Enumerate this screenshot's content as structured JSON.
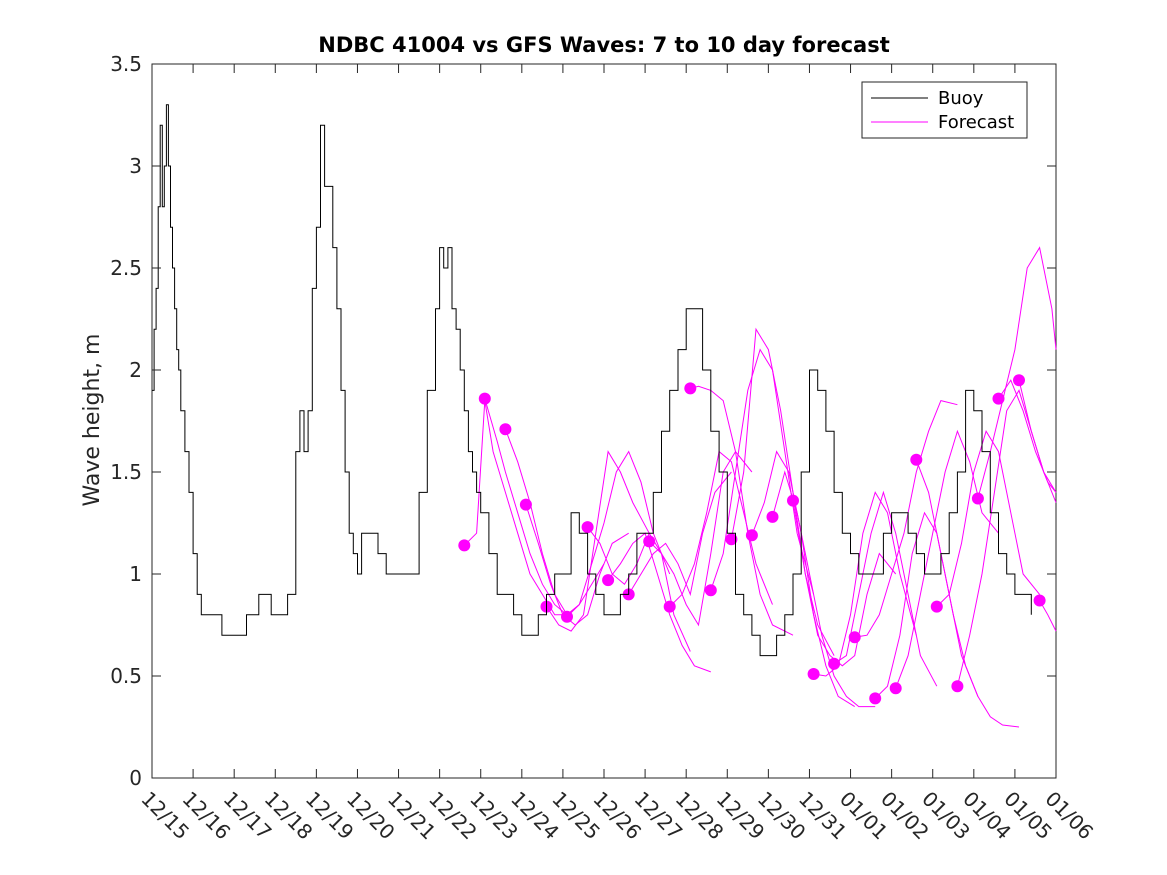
{
  "chart_data": {
    "type": "line",
    "title": "NDBC 41004 vs GFS Waves: 7 to 10 day forecast",
    "xlabel": "",
    "ylabel": "Wave height, m",
    "xlim": [
      0,
      22
    ],
    "ylim": [
      0,
      3.5
    ],
    "x_ticks": [
      0,
      1,
      2,
      3,
      4,
      5,
      6,
      7,
      8,
      9,
      10,
      11,
      12,
      13,
      14,
      15,
      16,
      17,
      18,
      19,
      20,
      21,
      22
    ],
    "x_tick_labels": [
      "12/15",
      "12/16",
      "12/17",
      "12/18",
      "12/19",
      "12/20",
      "12/21",
      "12/22",
      "12/23",
      "12/24",
      "12/25",
      "12/26",
      "12/27",
      "12/28",
      "12/29",
      "12/30",
      "12/31",
      "01/01",
      "01/02",
      "01/03",
      "01/04",
      "01/05",
      "01/06"
    ],
    "y_ticks": [
      0,
      0.5,
      1,
      1.5,
      2,
      2.5,
      3,
      3.5
    ],
    "y_tick_labels": [
      "0",
      "0.5",
      "1",
      "1.5",
      "2",
      "2.5",
      "3",
      "3.5"
    ],
    "grid": false,
    "legend": {
      "position": "top-right",
      "entries": [
        {
          "label": "Buoy",
          "color": "#000000"
        },
        {
          "label": "Forecast",
          "color": "#ff00ff"
        }
      ]
    },
    "colors": {
      "buoy": "#000000",
      "forecast": "#ff00ff",
      "axis": "#262626"
    },
    "series": [
      {
        "name": "Buoy",
        "x": [
          0,
          0.05,
          0.1,
          0.15,
          0.2,
          0.25,
          0.3,
          0.35,
          0.4,
          0.45,
          0.5,
          0.55,
          0.6,
          0.65,
          0.7,
          0.8,
          0.9,
          1.0,
          1.1,
          1.2,
          1.3,
          1.5,
          1.7,
          2.0,
          2.3,
          2.6,
          2.9,
          3.1,
          3.3,
          3.5,
          3.6,
          3.7,
          3.8,
          3.9,
          4.0,
          4.1,
          4.2,
          4.3,
          4.4,
          4.5,
          4.6,
          4.7,
          4.8,
          4.9,
          5.0,
          5.1,
          5.3,
          5.5,
          5.7,
          5.9,
          6.2,
          6.5,
          6.7,
          6.9,
          7.0,
          7.1,
          7.2,
          7.3,
          7.4,
          7.5,
          7.6,
          7.7,
          7.8,
          7.9,
          8.0,
          8.2,
          8.4,
          8.6,
          8.8,
          9.0,
          9.2,
          9.4,
          9.6,
          9.8,
          10.0,
          10.2,
          10.4,
          10.6,
          10.8,
          11.0,
          11.2,
          11.4,
          11.6,
          11.8,
          12.0,
          12.2,
          12.4,
          12.6,
          12.8,
          13.0,
          13.2,
          13.4,
          13.6,
          13.8,
          14.0,
          14.2,
          14.4,
          14.6,
          14.8,
          15.0,
          15.2,
          15.4,
          15.6,
          15.8,
          16.0,
          16.2,
          16.4,
          16.6,
          16.8,
          17.0,
          17.2,
          17.4,
          17.6,
          17.8,
          18.0,
          18.2,
          18.4,
          18.6,
          18.8,
          19.0,
          19.2,
          19.4,
          19.6,
          19.8,
          20.0,
          20.2,
          20.4,
          20.6,
          20.8,
          21.0,
          21.2,
          21.4
        ],
        "values": [
          1.9,
          2.2,
          2.4,
          2.8,
          3.2,
          2.8,
          3.0,
          3.3,
          3.0,
          2.7,
          2.5,
          2.3,
          2.1,
          2.0,
          1.8,
          1.6,
          1.4,
          1.1,
          0.9,
          0.8,
          0.8,
          0.8,
          0.7,
          0.7,
          0.8,
          0.9,
          0.8,
          0.8,
          0.9,
          1.6,
          1.8,
          1.6,
          1.8,
          2.4,
          2.7,
          3.2,
          2.9,
          2.9,
          2.6,
          2.3,
          1.9,
          1.5,
          1.2,
          1.1,
          1.0,
          1.2,
          1.2,
          1.1,
          1.0,
          1.0,
          1.0,
          1.4,
          1.9,
          2.3,
          2.6,
          2.5,
          2.6,
          2.3,
          2.2,
          2.0,
          1.8,
          1.6,
          1.5,
          1.4,
          1.3,
          1.1,
          0.9,
          0.9,
          0.8,
          0.7,
          0.7,
          0.8,
          0.9,
          1.0,
          1.0,
          1.3,
          1.2,
          1.0,
          0.9,
          0.8,
          0.8,
          0.9,
          1.0,
          1.2,
          1.2,
          1.4,
          1.7,
          1.9,
          2.1,
          2.3,
          2.3,
          2.0,
          1.7,
          1.5,
          1.2,
          0.9,
          0.8,
          0.7,
          0.6,
          0.6,
          0.7,
          0.8,
          1.0,
          1.5,
          2.0,
          1.9,
          1.7,
          1.4,
          1.2,
          1.1,
          1.0,
          1.0,
          1.0,
          1.2,
          1.3,
          1.3,
          1.2,
          1.1,
          1.0,
          1.0,
          1.1,
          1.3,
          1.5,
          1.9,
          1.8,
          1.6,
          1.3,
          1.1,
          1.0,
          0.9,
          0.9,
          0.8
        ]
      }
    ],
    "forecast_runs": [
      {
        "x": [
          7.6,
          7.9,
          8.1,
          8.3,
          8.6,
          8.9,
          9.2,
          9.5,
          9.8,
          10.1
        ],
        "values": [
          1.14,
          1.2,
          1.85,
          1.6,
          1.4,
          1.2,
          1.0,
          0.9,
          0.8,
          0.8
        ]
      },
      {
        "x": [
          8.1,
          8.4,
          8.6,
          8.9,
          9.2,
          9.5,
          9.8,
          10.1,
          10.4
        ],
        "values": [
          1.86,
          1.65,
          1.5,
          1.3,
          1.1,
          0.95,
          0.85,
          0.8,
          0.85
        ]
      },
      {
        "x": [
          8.6,
          8.9,
          9.2,
          9.5,
          9.8,
          10.1,
          10.4,
          10.7,
          11.0
        ],
        "values": [
          1.71,
          1.55,
          1.35,
          1.1,
          0.9,
          0.8,
          0.85,
          0.95,
          1.05
        ]
      },
      {
        "x": [
          9.1,
          9.4,
          9.7,
          10.0,
          10.3,
          10.6,
          10.9,
          11.2,
          11.6
        ],
        "values": [
          1.34,
          1.15,
          0.95,
          0.8,
          0.75,
          0.8,
          1.0,
          1.15,
          1.2
        ]
      },
      {
        "x": [
          9.6,
          9.9,
          10.2,
          10.5,
          10.8,
          11.1,
          11.4,
          11.7,
          12.1
        ],
        "values": [
          0.84,
          0.75,
          0.72,
          0.8,
          1.2,
          1.6,
          1.5,
          1.35,
          1.2
        ]
      },
      {
        "x": [
          10.1,
          10.4,
          10.7,
          11.0,
          11.3,
          11.6,
          11.9,
          12.2,
          12.6
        ],
        "values": [
          0.79,
          0.85,
          1.05,
          1.25,
          1.5,
          1.6,
          1.45,
          1.2,
          1.0
        ]
      },
      {
        "x": [
          10.6,
          10.9,
          11.2,
          11.5,
          11.8,
          12.1,
          12.4,
          12.7,
          13.1
        ],
        "values": [
          1.23,
          1.15,
          1.0,
          0.95,
          1.05,
          1.2,
          1.1,
          0.8,
          0.62
        ]
      },
      {
        "x": [
          11.1,
          11.4,
          11.7,
          12.0,
          12.3,
          12.6,
          12.9,
          13.2,
          13.6
        ],
        "values": [
          0.97,
          1.05,
          1.15,
          1.2,
          1.0,
          0.8,
          0.65,
          0.55,
          0.52
        ]
      },
      {
        "x": [
          11.6,
          11.9,
          12.2,
          12.5,
          12.8,
          13.1,
          13.4,
          13.7,
          14.1
        ],
        "values": [
          0.9,
          1.0,
          1.1,
          1.15,
          1.05,
          0.9,
          1.2,
          1.4,
          1.5
        ]
      },
      {
        "x": [
          12.1,
          12.4,
          12.7,
          13.0,
          13.3,
          13.6,
          13.9,
          14.2,
          14.6
        ],
        "values": [
          1.16,
          1.1,
          1.0,
          0.85,
          0.75,
          1.1,
          1.5,
          1.6,
          1.5
        ]
      },
      {
        "x": [
          12.6,
          12.9,
          13.2,
          13.5,
          13.8,
          14.1,
          14.4,
          14.7,
          15.1
        ],
        "values": [
          0.84,
          0.9,
          1.05,
          1.3,
          1.6,
          1.55,
          1.3,
          1.05,
          0.85
        ]
      },
      {
        "x": [
          13.1,
          13.3,
          13.6,
          13.9,
          14.2,
          14.5,
          14.8,
          15.1,
          15.6
        ],
        "values": [
          1.91,
          1.92,
          1.9,
          1.85,
          1.6,
          1.2,
          0.9,
          0.75,
          0.7
        ]
      },
      {
        "x": [
          13.6,
          13.9,
          14.2,
          14.5,
          14.8,
          15.1,
          15.4,
          15.7,
          16.1
        ],
        "values": [
          0.92,
          1.1,
          1.5,
          1.9,
          2.1,
          2.0,
          1.6,
          1.2,
          0.9
        ]
      },
      {
        "x": [
          14.1,
          14.4,
          14.7,
          15.0,
          15.3,
          15.6,
          15.9,
          16.2,
          16.6
        ],
        "values": [
          1.17,
          1.5,
          2.2,
          2.1,
          1.8,
          1.4,
          1.0,
          0.75,
          0.6
        ]
      },
      {
        "x": [
          14.6,
          14.9,
          15.2,
          15.5,
          15.8,
          16.1,
          16.4,
          16.7,
          17.1
        ],
        "values": [
          1.19,
          1.35,
          1.6,
          1.5,
          1.2,
          0.8,
          0.55,
          0.4,
          0.35
        ]
      },
      {
        "x": [
          15.1,
          15.4,
          15.7,
          16.0,
          16.3,
          16.6,
          16.9,
          17.2,
          17.6
        ],
        "values": [
          1.28,
          1.5,
          1.3,
          1.0,
          0.7,
          0.5,
          0.4,
          0.35,
          0.35
        ]
      },
      {
        "x": [
          15.6,
          15.9,
          16.2,
          16.5,
          16.8,
          17.1,
          17.4,
          17.7,
          18.1
        ],
        "values": [
          1.36,
          1.0,
          0.7,
          0.6,
          0.55,
          0.6,
          0.9,
          1.1,
          1.0
        ]
      },
      {
        "x": [
          16.1,
          16.4,
          16.7,
          17.0,
          17.3,
          17.6,
          17.9,
          18.2,
          18.6
        ],
        "values": [
          0.51,
          0.5,
          0.55,
          0.8,
          1.2,
          1.4,
          1.3,
          1.0,
          0.7
        ]
      },
      {
        "x": [
          16.6,
          16.9,
          17.2,
          17.5,
          17.8,
          18.1,
          18.4,
          18.7,
          19.1
        ],
        "values": [
          0.56,
          0.6,
          0.9,
          1.2,
          1.4,
          1.2,
          0.9,
          0.6,
          0.45
        ]
      },
      {
        "x": [
          17.1,
          17.4,
          17.7,
          18.0,
          18.3,
          18.6,
          18.9,
          19.2,
          19.6
        ],
        "values": [
          0.69,
          0.7,
          0.8,
          1.0,
          1.2,
          1.5,
          1.7,
          1.85,
          1.83
        ]
      },
      {
        "x": [
          17.6,
          17.9,
          18.2,
          18.5,
          18.8,
          19.1,
          19.4,
          19.7,
          20.1
        ],
        "values": [
          0.39,
          0.45,
          0.7,
          1.1,
          1.3,
          1.2,
          0.9,
          0.6,
          0.4
        ]
      },
      {
        "x": [
          18.1,
          18.4,
          18.7,
          19.0,
          19.3,
          19.6,
          19.9,
          20.2,
          20.6
        ],
        "values": [
          0.44,
          0.6,
          0.9,
          1.2,
          1.5,
          1.7,
          1.55,
          1.3,
          1.2
        ]
      },
      {
        "x": [
          18.6,
          18.9,
          19.2,
          19.5,
          19.8,
          20.1,
          20.4,
          20.7,
          21.1
        ],
        "values": [
          1.56,
          1.4,
          1.1,
          0.8,
          0.55,
          0.4,
          0.3,
          0.26,
          0.25
        ]
      },
      {
        "x": [
          19.1,
          19.4,
          19.7,
          20.0,
          20.3,
          20.6,
          20.9,
          21.2,
          21.6
        ],
        "values": [
          0.84,
          0.9,
          1.15,
          1.5,
          1.7,
          1.6,
          1.3,
          1.0,
          0.9
        ]
      },
      {
        "x": [
          19.6,
          19.9,
          20.2,
          20.5,
          20.8,
          21.1,
          21.4,
          21.7,
          22.0
        ],
        "values": [
          0.45,
          0.7,
          1.0,
          1.4,
          1.8,
          1.9,
          1.7,
          1.5,
          1.35
        ]
      },
      {
        "x": [
          20.1,
          20.4,
          20.7,
          21.0,
          21.3,
          21.6,
          21.9,
          22.0
        ],
        "values": [
          1.37,
          1.6,
          1.85,
          2.1,
          2.5,
          2.6,
          2.3,
          2.1
        ]
      },
      {
        "x": [
          20.6,
          20.9,
          21.2,
          21.5,
          21.8,
          22.0
        ],
        "values": [
          1.86,
          1.95,
          1.8,
          1.6,
          1.45,
          1.4
        ]
      },
      {
        "x": [
          21.1,
          21.4,
          21.7,
          22.0
        ],
        "values": [
          1.95,
          1.7,
          1.5,
          1.4
        ]
      },
      {
        "x": [
          21.6,
          21.8,
          22.0
        ],
        "values": [
          0.87,
          0.8,
          0.72
        ]
      }
    ]
  }
}
